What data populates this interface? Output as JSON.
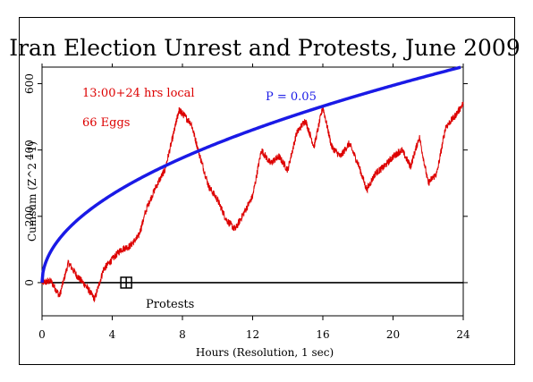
{
  "chart_data": {
    "type": "line",
    "title": "Iran Election Unrest and Protests, June 2009",
    "xlabel": "Hours (Resolution, 1 sec)",
    "ylabel": "Cumsum (Z^2 - 1)",
    "xlim": [
      0,
      24
    ],
    "ylim": [
      -100,
      650
    ],
    "x_ticks": [
      0,
      4,
      8,
      12,
      16,
      20,
      24
    ],
    "y_ticks": [
      0,
      200,
      400,
      600
    ],
    "grid": false,
    "annotations": {
      "time_window": "13:00+24 hrs local",
      "eggs": "66 Eggs",
      "probability_label": "P = 0.05",
      "event_label": "Protests"
    },
    "event_marker": {
      "x": 5,
      "y": 0
    },
    "series": [
      {
        "color": "#dd0000",
        "x": [
          0,
          0.5,
          1.0,
          1.5,
          2.0,
          2.5,
          3.0,
          3.5,
          4.0,
          4.5,
          5.0,
          5.5,
          6.0,
          6.5,
          7.0,
          7.5,
          7.8,
          8.0,
          8.5,
          9.0,
          9.5,
          10.0,
          10.5,
          11.0,
          11.5,
          12.0,
          12.5,
          13.0,
          13.5,
          14.0,
          14.5,
          15.0,
          15.5,
          16.0,
          16.5,
          17.0,
          17.5,
          18.0,
          18.5,
          19.0,
          19.5,
          20.0,
          20.5,
          21.0,
          21.5,
          22.0,
          22.5,
          23.0,
          23.5,
          24.0
        ],
        "values": [
          0,
          5,
          -40,
          60,
          20,
          -10,
          -50,
          40,
          70,
          100,
          110,
          140,
          230,
          290,
          340,
          450,
          520,
          510,
          480,
          380,
          290,
          250,
          190,
          160,
          210,
          260,
          400,
          360,
          380,
          340,
          450,
          490,
          410,
          530,
          410,
          380,
          420,
          360,
          280,
          330,
          350,
          380,
          400,
          350,
          440,
          300,
          330,
          470,
          500,
          540
        ]
      },
      {
        "name": "P = 0.05",
        "color": "#1a1ae6",
        "x": [
          0,
          0.25,
          0.5,
          1,
          1.5,
          2,
          3,
          4,
          5,
          6,
          7,
          8,
          10,
          12,
          14,
          16,
          18,
          20,
          22,
          24
        ],
        "values": [
          0,
          66,
          94,
          133,
          163,
          188,
          230,
          266,
          297,
          326,
          352,
          376,
          420,
          461,
          497,
          532,
          564,
          594,
          623,
          651
        ]
      }
    ]
  }
}
